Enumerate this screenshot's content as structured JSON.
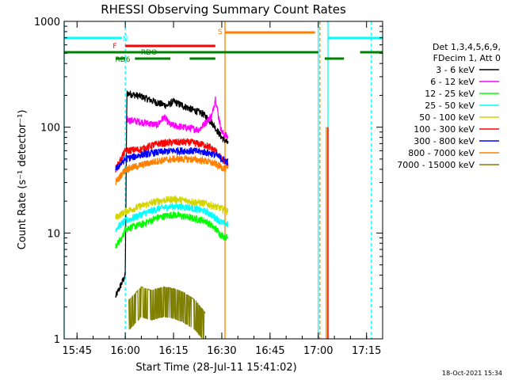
{
  "chart_data": {
    "type": "line",
    "title": "RHESSI Observing Summary Count Rates",
    "xlabel": "Start Time (28-Jul-11 15:41:02)",
    "ylabel": "Count Rate (s⁻¹ detector⁻¹)",
    "yscale": "log",
    "ylim": [
      1,
      1000
    ],
    "xlim": [
      "15:41",
      "17:20"
    ],
    "x_ticks": [
      "15:45",
      "16:00",
      "16:15",
      "16:30",
      "16:45",
      "17:00",
      "17:15"
    ],
    "y_ticks": [
      "1",
      "10",
      "100",
      "1000"
    ],
    "legend": {
      "placement": "right",
      "header": [
        "Det 1,3,4,5,6,9,",
        "FDecim 1, Att 0"
      ],
      "entries": [
        {
          "label": "3 - 6 keV",
          "color": "#000000"
        },
        {
          "label": "6 - 12 keV",
          "color": "#ff00ff"
        },
        {
          "label": "12 - 25 keV",
          "color": "#00ff00"
        },
        {
          "label": "25 - 50 keV",
          "color": "#00ffff"
        },
        {
          "label": "50 - 100 keV",
          "color": "#d4d400"
        },
        {
          "label": "100 - 300 keV",
          "color": "#ff0000"
        },
        {
          "label": "300 - 800 keV",
          "color": "#0000ff"
        },
        {
          "label": "800 - 7000 keV",
          "color": "#ff8000"
        },
        {
          "label": "7000 - 15000 keV",
          "color": "#808000"
        }
      ]
    },
    "series": [
      {
        "name": "3 - 6 keV",
        "color": "#000000",
        "points": [
          [
            "15:57",
            2.5
          ],
          [
            "16:00",
            4
          ],
          [
            "16:00.5",
            210
          ],
          [
            "16:05",
            195
          ],
          [
            "16:10",
            170
          ],
          [
            "16:13",
            160
          ],
          [
            "16:15",
            175
          ],
          [
            "16:20",
            150
          ],
          [
            "16:24",
            135
          ],
          [
            "16:27",
            110
          ],
          [
            "16:30",
            80
          ],
          [
            "16:32",
            70
          ]
        ]
      },
      {
        "name": "6 - 12 keV",
        "color": "#ff00ff",
        "points": [
          [
            "16:00.5",
            118
          ],
          [
            "16:05",
            112
          ],
          [
            "16:10",
            105
          ],
          [
            "16:12",
            125
          ],
          [
            "16:14",
            105
          ],
          [
            "16:18",
            100
          ],
          [
            "16:23",
            95
          ],
          [
            "16:27",
            130
          ],
          [
            "16:28",
            190
          ],
          [
            "16:29",
            125
          ],
          [
            "16:30",
            90
          ],
          [
            "16:32",
            80
          ]
        ]
      },
      {
        "name": "12 - 25 keV",
        "color": "#00ff00",
        "points": [
          [
            "15:57",
            7.5
          ],
          [
            "15:59",
            9
          ],
          [
            "16:00",
            11
          ],
          [
            "16:05",
            12
          ],
          [
            "16:10",
            14
          ],
          [
            "16:15",
            15
          ],
          [
            "16:20",
            14
          ],
          [
            "16:25",
            13
          ],
          [
            "16:28",
            11
          ],
          [
            "16:30",
            9.5
          ],
          [
            "16:32",
            9
          ]
        ]
      },
      {
        "name": "25 - 50 keV",
        "color": "#00ffff",
        "points": [
          [
            "15:57",
            11
          ],
          [
            "16:00",
            13
          ],
          [
            "16:05",
            15
          ],
          [
            "16:10",
            17
          ],
          [
            "16:15",
            18
          ],
          [
            "16:20",
            17.5
          ],
          [
            "16:25",
            16
          ],
          [
            "16:28",
            14
          ],
          [
            "16:30",
            12.5
          ],
          [
            "16:32",
            12
          ]
        ]
      },
      {
        "name": "50 - 100 keV",
        "color": "#d4d400",
        "points": [
          [
            "15:57",
            14
          ],
          [
            "16:00",
            16
          ],
          [
            "16:05",
            18
          ],
          [
            "16:10",
            20
          ],
          [
            "16:15",
            21
          ],
          [
            "16:20",
            20
          ],
          [
            "16:25",
            19
          ],
          [
            "16:30",
            17
          ],
          [
            "16:32",
            16
          ]
        ]
      },
      {
        "name": "100 - 300 keV",
        "color": "#ff0000",
        "points": [
          [
            "15:57",
            40
          ],
          [
            "16:00",
            60
          ],
          [
            "16:05",
            62
          ],
          [
            "16:10",
            70
          ],
          [
            "16:15",
            72
          ],
          [
            "16:20",
            72
          ],
          [
            "16:25",
            68
          ],
          [
            "16:28",
            60
          ],
          [
            "16:30",
            50
          ],
          [
            "16:32",
            45
          ]
        ]
      },
      {
        "name": "300 - 800 keV",
        "color": "#0000ff",
        "points": [
          [
            "15:57",
            40
          ],
          [
            "16:00",
            50
          ],
          [
            "16:05",
            55
          ],
          [
            "16:10",
            58
          ],
          [
            "16:15",
            60
          ],
          [
            "16:20",
            60
          ],
          [
            "16:25",
            58
          ],
          [
            "16:28",
            55
          ],
          [
            "16:30",
            50
          ],
          [
            "16:32",
            47
          ]
        ]
      },
      {
        "name": "800 - 7000 keV",
        "color": "#ff8000",
        "points": [
          [
            "15:57",
            30
          ],
          [
            "16:00",
            40
          ],
          [
            "16:05",
            44
          ],
          [
            "16:10",
            48
          ],
          [
            "16:15",
            50
          ],
          [
            "16:20",
            50
          ],
          [
            "16:25",
            48
          ],
          [
            "16:28",
            45
          ],
          [
            "16:30",
            42
          ],
          [
            "16:32",
            40
          ]
        ]
      },
      {
        "name": "7000 - 15000 keV",
        "color": "#808000",
        "points": [
          [
            "16:01",
            2
          ],
          [
            "16:05",
            2.7
          ],
          [
            "16:08",
            2.5
          ],
          [
            "16:12",
            2.7
          ],
          [
            "16:15",
            2.6
          ],
          [
            "16:18",
            2.4
          ],
          [
            "16:22",
            2
          ],
          [
            "16:25",
            1.5
          ]
        ]
      }
    ],
    "late_spikes": [
      {
        "time": "17:02.5",
        "value": 100,
        "color": "#ff8000"
      },
      {
        "time": "17:03",
        "value": 100,
        "color": "#ff0000"
      }
    ],
    "intervals": [
      {
        "label": "N",
        "color": "#00ffff",
        "row": 1,
        "segments": [
          [
            "15:41",
            "15:59"
          ],
          [
            "17:03",
            "17:20"
          ]
        ]
      },
      {
        "label": "S",
        "color": "#ff8000",
        "row": 2,
        "segments": [
          [
            "16:31",
            "16:59"
          ]
        ]
      },
      {
        "label": "F",
        "color": "#ff0000",
        "row": 3,
        "segments": [
          [
            "16:00",
            "16:28"
          ]
        ]
      },
      {
        "label": "RDO",
        "color": "#008000",
        "row": 4,
        "segments": [
          [
            "15:41",
            "16:31"
          ],
          [
            "16:31",
            "17:00"
          ],
          [
            "17:13",
            "17:20"
          ]
        ]
      },
      {
        "label": "RD6",
        "color": "#008000",
        "row": 5,
        "segments": [
          [
            "15:57",
            "16:00"
          ],
          [
            "16:03",
            "16:14"
          ],
          [
            "16:20",
            "16:28"
          ],
          [
            "17:02",
            "17:08"
          ]
        ]
      }
    ],
    "vlines": [
      {
        "time": "16:00",
        "color": "#00ffff",
        "style": "dashed"
      },
      {
        "time": "16:31",
        "color": "#ff8000",
        "style": "solid"
      },
      {
        "time": "17:00",
        "color": "#00ffff",
        "style": "solid"
      },
      {
        "time": "17:00.5",
        "color": "#ff8000",
        "style": "dashed"
      },
      {
        "time": "17:03",
        "color": "#00ffff",
        "style": "solid"
      },
      {
        "time": "17:16.5",
        "color": "#00ffff",
        "style": "dashed"
      },
      {
        "time": "15:41",
        "color": "#00ffff",
        "style": "solid"
      }
    ]
  },
  "footer": {
    "timestamp": "18-Oct-2021 15:34"
  }
}
